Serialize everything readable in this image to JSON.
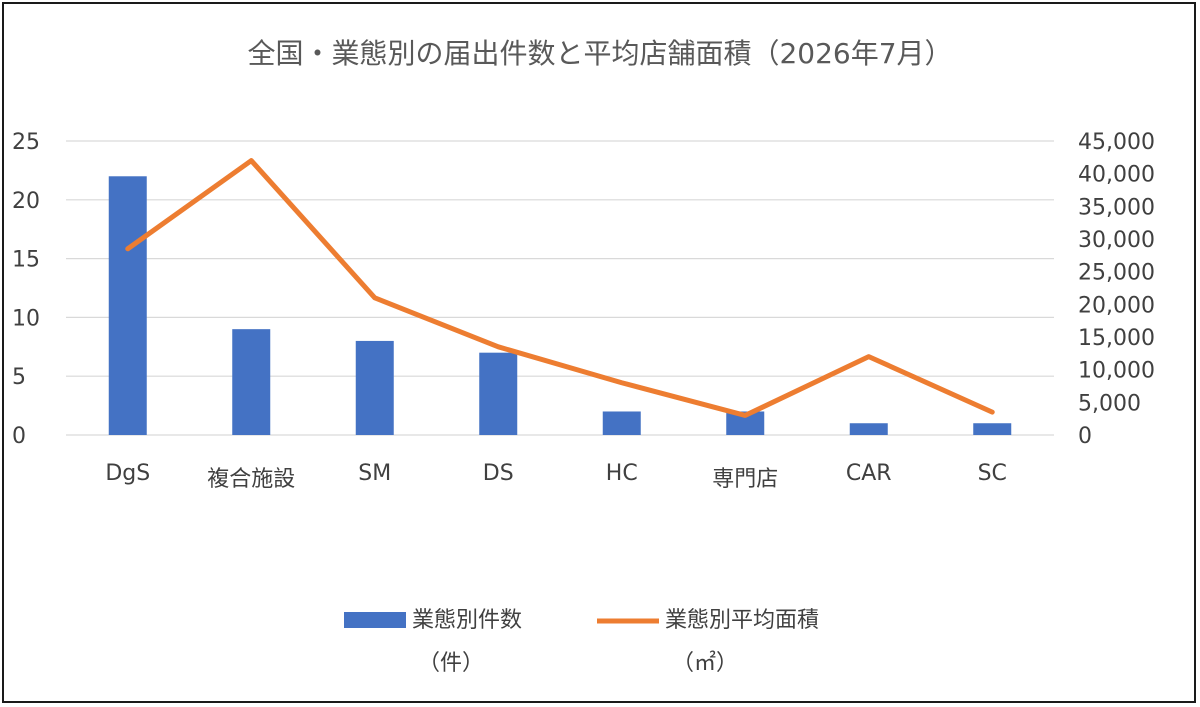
{
  "chart_data": {
    "type": "bar",
    "title": "全国・業態別の届出件数と平均店舗面積（2026年7月）",
    "categories": [
      "DgS",
      "複合施設",
      "SM",
      "DS",
      "HC",
      "専門店",
      "CAR",
      "SC"
    ],
    "series": [
      {
        "name": "業態別件数",
        "unit_label": "（件）",
        "type": "bar",
        "axis": "left",
        "color": "#4472C4",
        "values": [
          22,
          9,
          8,
          7,
          2,
          2,
          1,
          1
        ]
      },
      {
        "name": "業態別平均面積",
        "unit_label": "（㎡）",
        "type": "line",
        "axis": "right",
        "color": "#ED7D31",
        "values": [
          28500,
          42000,
          21000,
          13500,
          8000,
          3000,
          12000,
          3500
        ]
      }
    ],
    "y_left": {
      "min": 0,
      "max": 25,
      "ticks": [
        "0",
        "5",
        "10",
        "15",
        "20",
        "25"
      ]
    },
    "y_right": {
      "min": 0,
      "max": 45000,
      "ticks": [
        "0",
        "5,000",
        "10,000",
        "15,000",
        "20,000",
        "25,000",
        "30,000",
        "35,000",
        "40,000",
        "45,000"
      ]
    },
    "grid": true,
    "gridline_color": "#d9d9d9",
    "legend_position": "bottom"
  }
}
